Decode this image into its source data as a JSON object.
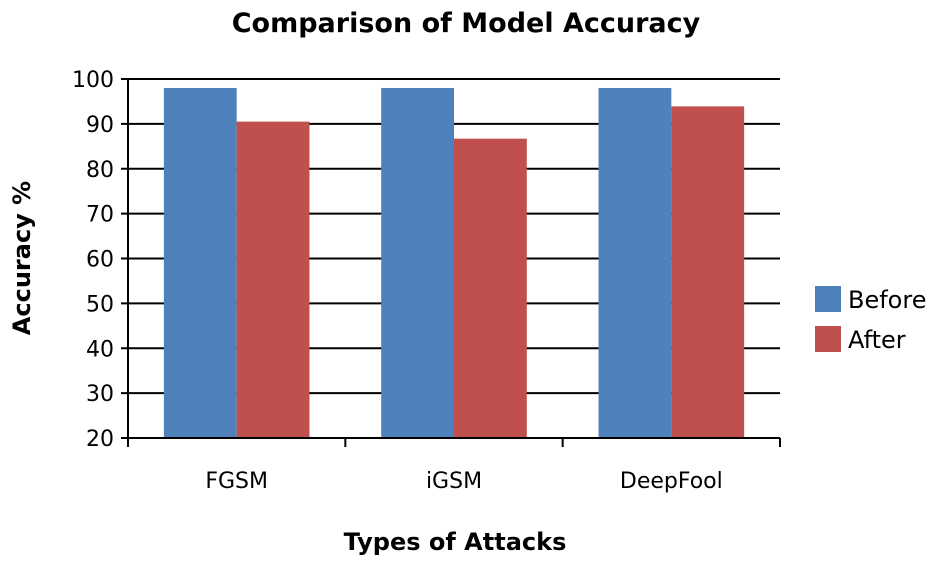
{
  "chart_data": {
    "type": "bar",
    "title": "Comparison of Model Accuracy",
    "xlabel": "Types of Attacks",
    "ylabel": "Accuracy %",
    "categories": [
      "FGSM",
      "iGSM",
      "DeepFool"
    ],
    "series": [
      {
        "name": "Before",
        "color": "#4F81BD",
        "values": [
          98,
          98,
          98
        ]
      },
      {
        "name": "After",
        "color": "#C0504D",
        "values": [
          90.5,
          86.7,
          93.9
        ]
      }
    ],
    "ylim": [
      20,
      100
    ],
    "yticks": [
      20,
      30,
      40,
      50,
      60,
      70,
      80,
      90,
      100
    ],
    "grid": true,
    "legend_position": "right"
  }
}
